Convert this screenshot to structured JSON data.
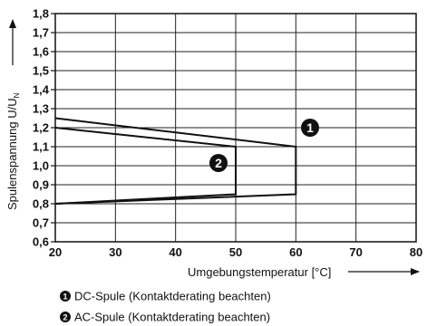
{
  "chart_data": {
    "type": "line",
    "xlabel": "Umgebungstemperatur [°C]",
    "ylabel": "Spulenspannung U/U",
    "ylabel_subscript": "N",
    "xlim": [
      20,
      80
    ],
    "ylim": [
      0.6,
      1.8
    ],
    "x_ticks": [
      "20",
      "30",
      "40",
      "50",
      "60",
      "70",
      "80"
    ],
    "y_ticks": [
      "0,6",
      "0,7",
      "0,8",
      "0,9",
      "1,0",
      "1,1",
      "1,2",
      "1,3",
      "1,4",
      "1,5",
      "1,6",
      "1,7",
      "1,8"
    ],
    "grid": true,
    "series": [
      {
        "name": "DC-Spule (Kontaktderating beachten)",
        "marker": "1",
        "upper": [
          [
            20,
            1.25
          ],
          [
            60,
            1.1
          ]
        ],
        "lower": [
          [
            20,
            0.8
          ],
          [
            60,
            0.85
          ]
        ],
        "cutoff_x": 60
      },
      {
        "name": "AC-Spule (Kontaktderating beachten)",
        "marker": "2",
        "upper": [
          [
            20,
            1.2
          ],
          [
            50,
            1.1
          ]
        ],
        "lower": [
          [
            20,
            0.8
          ],
          [
            50,
            0.85
          ]
        ],
        "cutoff_x": 50
      }
    ],
    "legend": [
      {
        "marker": "1",
        "label": "DC-Spule (Kontaktderating beachten)"
      },
      {
        "marker": "2",
        "label": "AC-Spule (Kontaktderating beachten)"
      }
    ]
  }
}
